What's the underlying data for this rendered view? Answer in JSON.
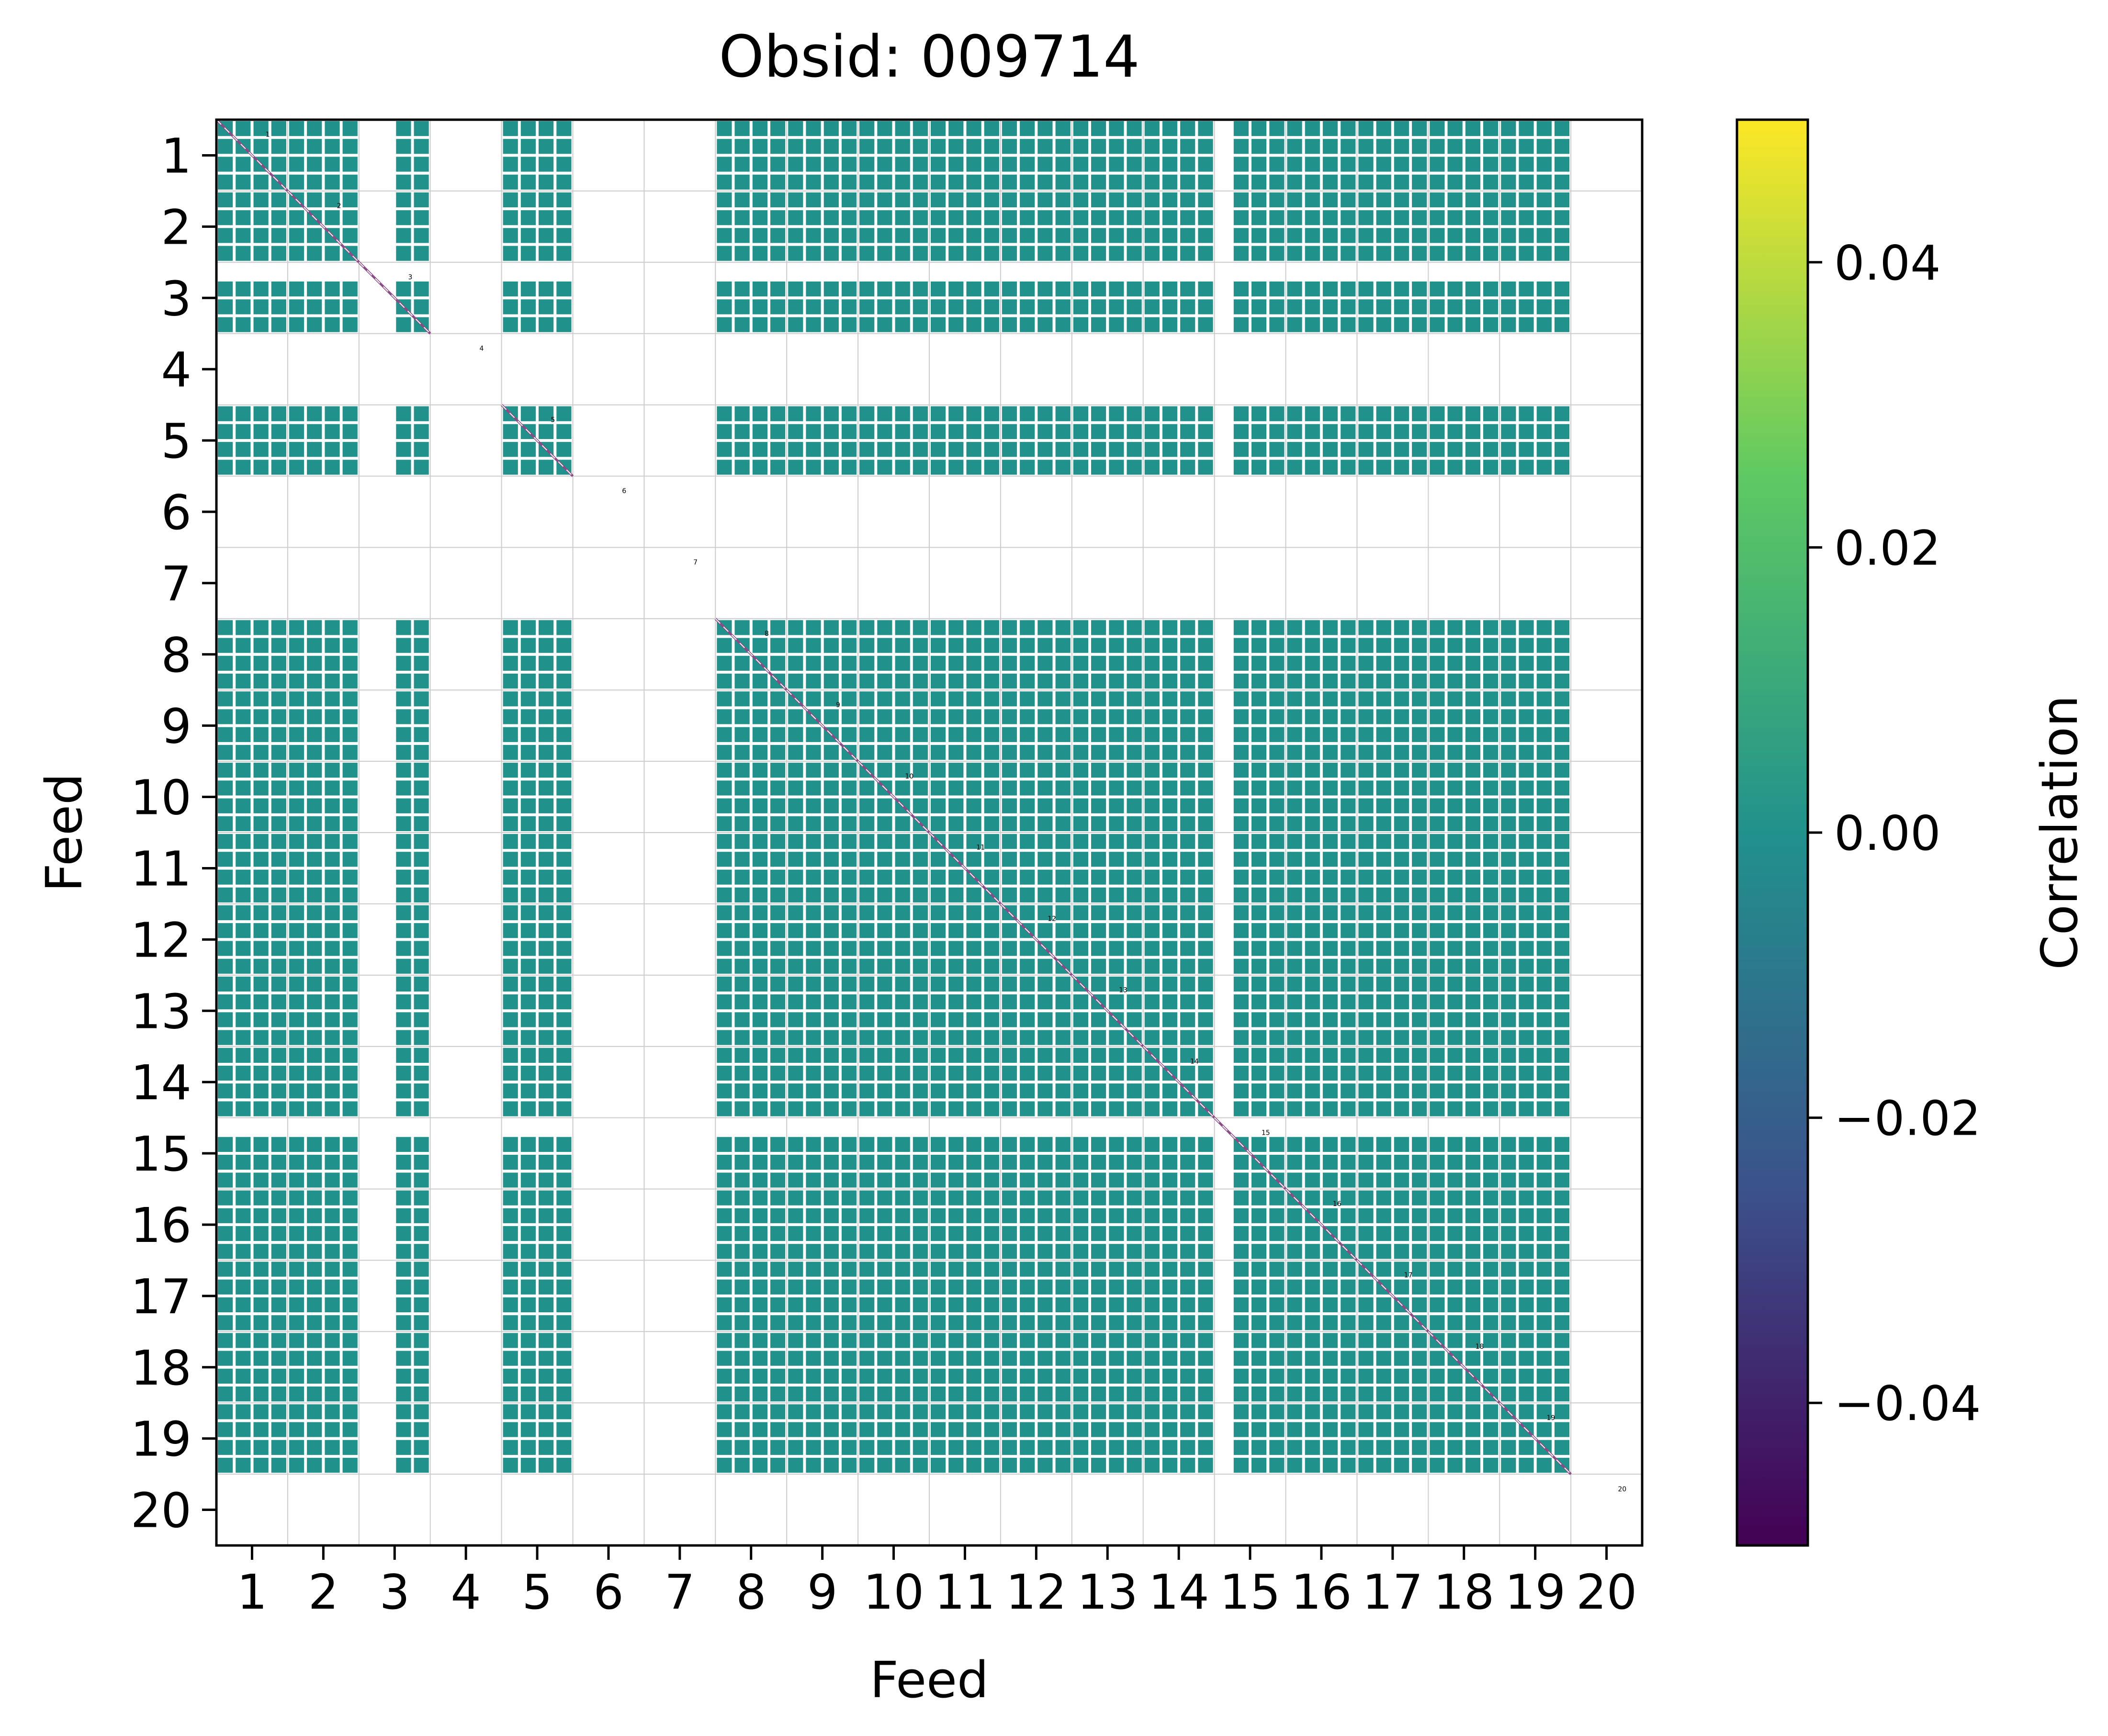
{
  "chart_data": {
    "type": "heatmap",
    "title": "Obsid: 009714",
    "xlabel": "Feed",
    "ylabel": "Feed",
    "x_tick_labels": [
      "1",
      "2",
      "3",
      "4",
      "5",
      "6",
      "7",
      "8",
      "9",
      "10",
      "11",
      "12",
      "13",
      "14",
      "15",
      "16",
      "17",
      "18",
      "19",
      "20"
    ],
    "y_tick_labels": [
      "1",
      "2",
      "3",
      "4",
      "5",
      "6",
      "7",
      "8",
      "9",
      "10",
      "11",
      "12",
      "13",
      "14",
      "15",
      "16",
      "17",
      "18",
      "19",
      "20"
    ],
    "feeds": [
      1,
      2,
      3,
      4,
      5,
      6,
      7,
      8,
      9,
      10,
      11,
      12,
      13,
      14,
      15,
      16,
      17,
      18,
      19,
      20
    ],
    "active_feeds": [
      1,
      2,
      3,
      5,
      8,
      9,
      10,
      11,
      12,
      13,
      14,
      15,
      16,
      17,
      18,
      19
    ],
    "sub_blocks_per_feed": 4,
    "masked_sub_rows": {
      "3": [
        0
      ],
      "15": [
        0
      ]
    },
    "masked_sub_cols": {
      "3": [
        0,
        1
      ],
      "15": [
        0
      ]
    },
    "diagonal_feed_labels": [
      "1",
      "2",
      "3",
      "4",
      "5",
      "6",
      "7",
      "8",
      "9",
      "10",
      "11",
      "12",
      "13",
      "14",
      "15",
      "16",
      "17",
      "18",
      "19",
      "20"
    ],
    "off_diagonal_value": 0.0,
    "colorbar": {
      "label": "Correlation",
      "min": -0.05,
      "max": 0.05,
      "ticks": [
        0.04,
        0.02,
        0.0,
        -0.02,
        -0.04
      ],
      "tick_labels": [
        "0.04",
        "0.02",
        "0.00",
        "−0.02",
        "−0.04"
      ],
      "colormap": "viridis",
      "stops": [
        "#440154",
        "#3b528b",
        "#21918c",
        "#5ec962",
        "#fde725"
      ]
    },
    "cell_color": "#21918c",
    "diagonal_color": "#8c4a86",
    "grid": true
  }
}
